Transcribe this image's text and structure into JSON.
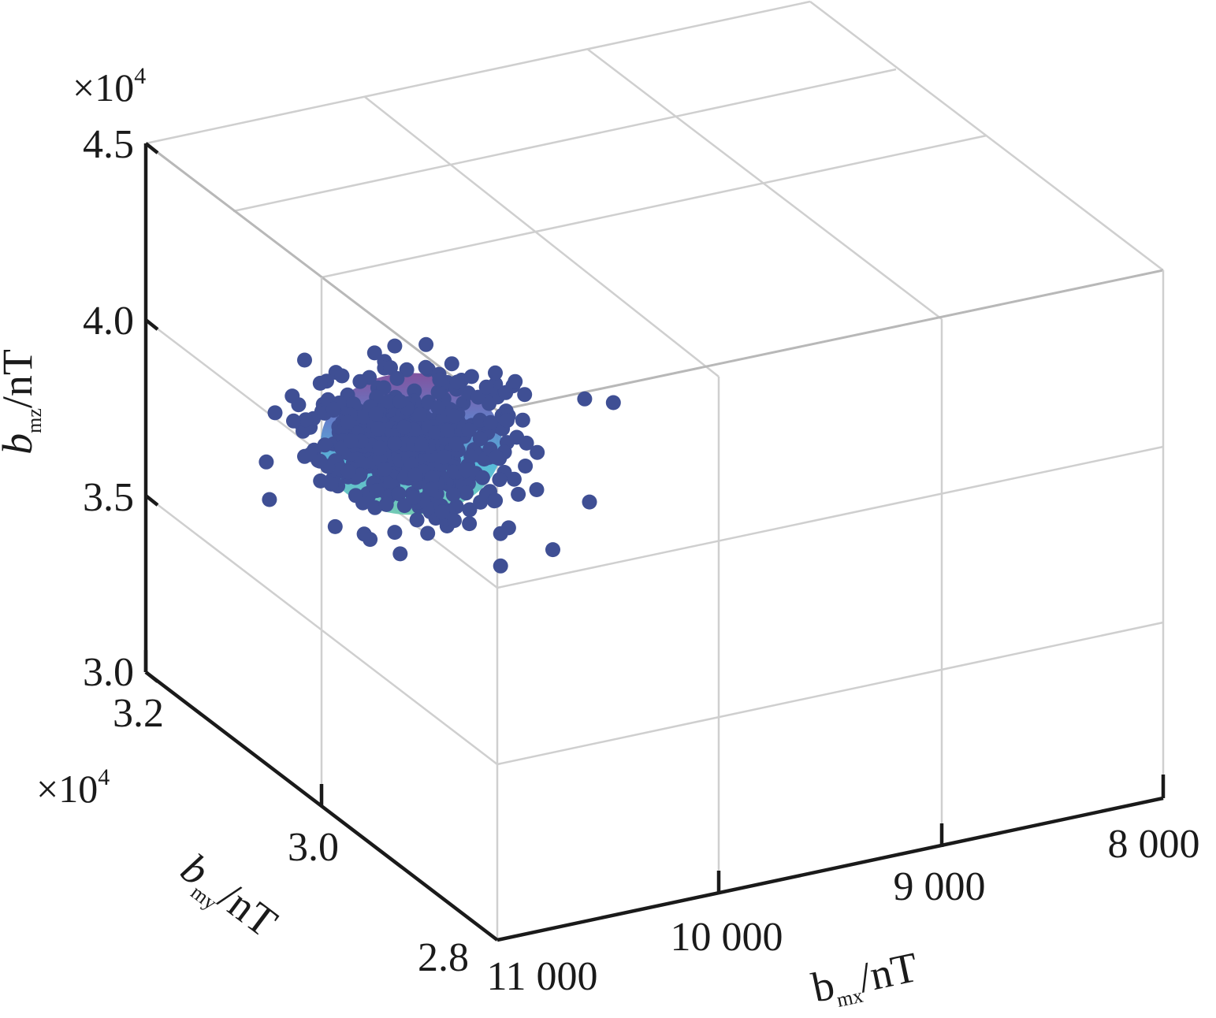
{
  "chart_data": {
    "type": "scatter",
    "projection": "3d",
    "title": "",
    "grid": true,
    "axes": {
      "x": {
        "label_main": "b",
        "label_sub": "mx",
        "label_unit": "/nT",
        "range": [
          8000,
          11000
        ],
        "ticks": [
          11000,
          10000,
          9000,
          8000
        ],
        "tick_labels": [
          "11 000",
          "10 000",
          "9 000",
          "8 000"
        ]
      },
      "y": {
        "label_main": "b",
        "label_sub": "my",
        "label_unit": "/nT",
        "range": [
          28000,
          32000
        ],
        "multiplier_base": "×10",
        "multiplier_exp": "4",
        "ticks": [
          28000,
          30000,
          32000
        ],
        "tick_labels": [
          "2.8",
          "3.0",
          "3.2"
        ]
      },
      "z": {
        "label_main": "b",
        "label_sub": "mz",
        "label_unit": "/nT",
        "range": [
          30000,
          45000
        ],
        "multiplier_base": "×10",
        "multiplier_exp": "4",
        "ticks": [
          30000,
          35000,
          40000,
          45000
        ],
        "tick_labels": [
          "3.0",
          "3.5",
          "4.0",
          "4.5"
        ]
      }
    },
    "series": [
      {
        "kind": "scatter",
        "marker_color": "#3f4f94",
        "center": [
          10200,
          31000,
          37300
        ],
        "spread": [
          420,
          650,
          1600
        ],
        "point_count": 460,
        "outliers": [
          [
            9300,
            31300,
            36800
          ],
          [
            10900,
            29700,
            38000
          ]
        ]
      },
      {
        "kind": "ellipsoid-surface",
        "center": [
          10200,
          31000,
          37300
        ],
        "radii": [
          230,
          400,
          900
        ],
        "colormap": [
          "#7a4a9a",
          "#5a7ac8",
          "#4fb8d8",
          "#6cc8b0"
        ]
      }
    ]
  }
}
